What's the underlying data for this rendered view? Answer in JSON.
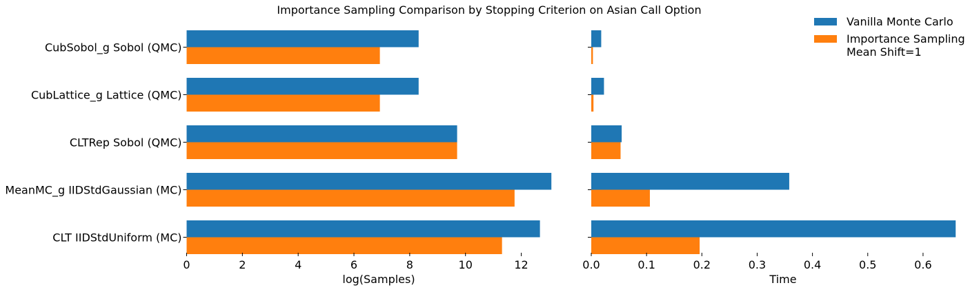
{
  "chart_data": {
    "type": "bar",
    "orientation": "horizontal",
    "title": "Importance Sampling Comparison by Stopping Criterion on Asian Call Option",
    "categories": [
      "CubSobol_g Sobol (QMC)",
      "CubLattice_g Lattice (QMC)",
      "CLTRep Sobol (QMC)",
      "MeanMC_g IIDStdGaussian (MC)",
      "CLT IIDStdUniform (MC)"
    ],
    "series_names": [
      "Vanilla Monte Carlo",
      "Importance Sampling\nMean Shift=1"
    ],
    "colors": [
      "#1f77b4",
      "#ff7f0e"
    ],
    "legend_position": "top-right",
    "grid": false,
    "panels": [
      {
        "xlabel": "log(Samples)",
        "xlim": [
          0,
          13.1
        ],
        "xticks": [
          0,
          2,
          4,
          6,
          8,
          10,
          12
        ],
        "tick_labels": [
          "0",
          "2",
          "4",
          "6",
          "8",
          "10",
          "12"
        ],
        "series": [
          {
            "name": "Vanilla Monte Carlo",
            "values": [
              8.32,
              8.32,
              9.7,
              13.08,
              12.67
            ]
          },
          {
            "name": "Importance Sampling Mean Shift=1",
            "values": [
              6.93,
              6.93,
              9.7,
              11.76,
              11.31
            ]
          }
        ]
      },
      {
        "xlabel": "Time",
        "xlim": [
          0,
          0.66
        ],
        "xticks": [
          0.0,
          0.1,
          0.2,
          0.3,
          0.4,
          0.5,
          0.6
        ],
        "tick_labels": [
          "0.0",
          "0.1",
          "0.2",
          "0.3",
          "0.4",
          "0.5",
          "0.6"
        ],
        "series": [
          {
            "name": "Vanilla Monte Carlo",
            "values": [
              0.018,
              0.023,
              0.055,
              0.358,
              0.659
            ]
          },
          {
            "name": "Importance Sampling Mean Shift=1",
            "values": [
              0.003,
              0.004,
              0.053,
              0.106,
              0.196
            ]
          }
        ]
      }
    ]
  }
}
